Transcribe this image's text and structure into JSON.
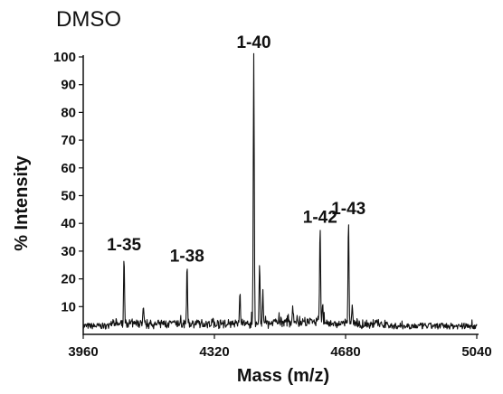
{
  "chart_data": {
    "type": "line",
    "title": "DMSO",
    "xlabel": "Mass (m/z)",
    "ylabel": "% Intensity",
    "xlim": [
      3960,
      5040
    ],
    "ylim": [
      0,
      100
    ],
    "x_ticks": [
      3960,
      4320,
      4680,
      5040
    ],
    "y_ticks": [
      10,
      20,
      30,
      40,
      50,
      60,
      70,
      80,
      90,
      100
    ],
    "grid": false,
    "baseline": 3,
    "peaks": [
      {
        "x": 4072,
        "y": 27,
        "label": "1-35"
      },
      {
        "x": 4125,
        "y": 9,
        "label": ""
      },
      {
        "x": 4245,
        "y": 23,
        "label": "1-38"
      },
      {
        "x": 4315,
        "y": 5,
        "label": ""
      },
      {
        "x": 4390,
        "y": 15,
        "label": ""
      },
      {
        "x": 4428,
        "y": 100,
        "label": "1-40"
      },
      {
        "x": 4444,
        "y": 25,
        "label": ""
      },
      {
        "x": 4453,
        "y": 14,
        "label": ""
      },
      {
        "x": 4535,
        "y": 9,
        "label": ""
      },
      {
        "x": 4610,
        "y": 37,
        "label": "1-42"
      },
      {
        "x": 4617,
        "y": 8,
        "label": ""
      },
      {
        "x": 4688,
        "y": 40,
        "label": "1-43"
      },
      {
        "x": 4698,
        "y": 10,
        "label": ""
      }
    ]
  }
}
